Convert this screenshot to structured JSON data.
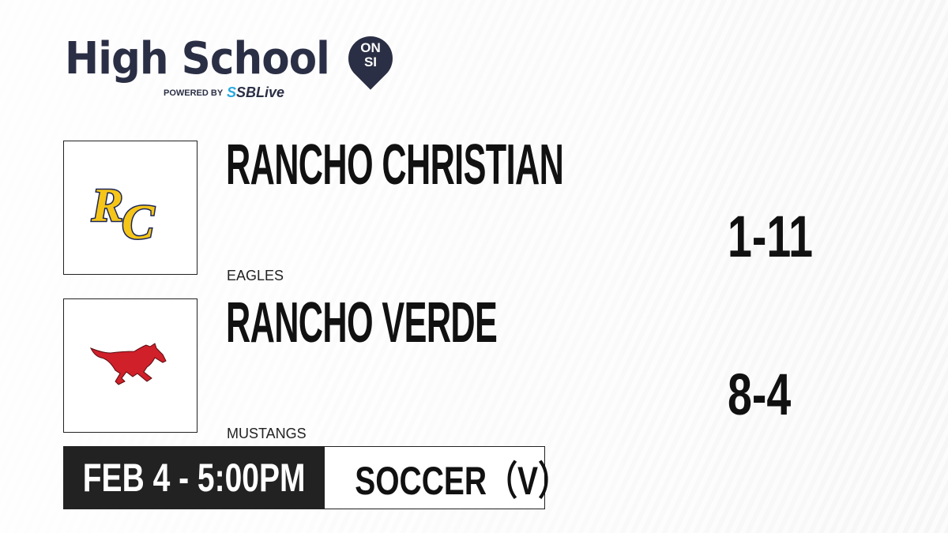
{
  "brand": {
    "title": "High School",
    "badge_top": "ON",
    "badge_bottom": "SI",
    "powered_by": "POWERED BY",
    "partner_prefix": "S",
    "partner": "SBLive"
  },
  "teams": [
    {
      "name": "RANCHO CHRISTIAN",
      "mascot": "EAGLES",
      "record": "1-11",
      "logo_letters": "RC",
      "logo_color": "#f5c518"
    },
    {
      "name": "RANCHO VERDE",
      "mascot": "MUSTANGS",
      "record": "8-4",
      "logo_color": "#d0202a"
    }
  ],
  "game": {
    "datetime": "FEB 4 - 5:00PM",
    "sport": "SOCCER（V）"
  }
}
